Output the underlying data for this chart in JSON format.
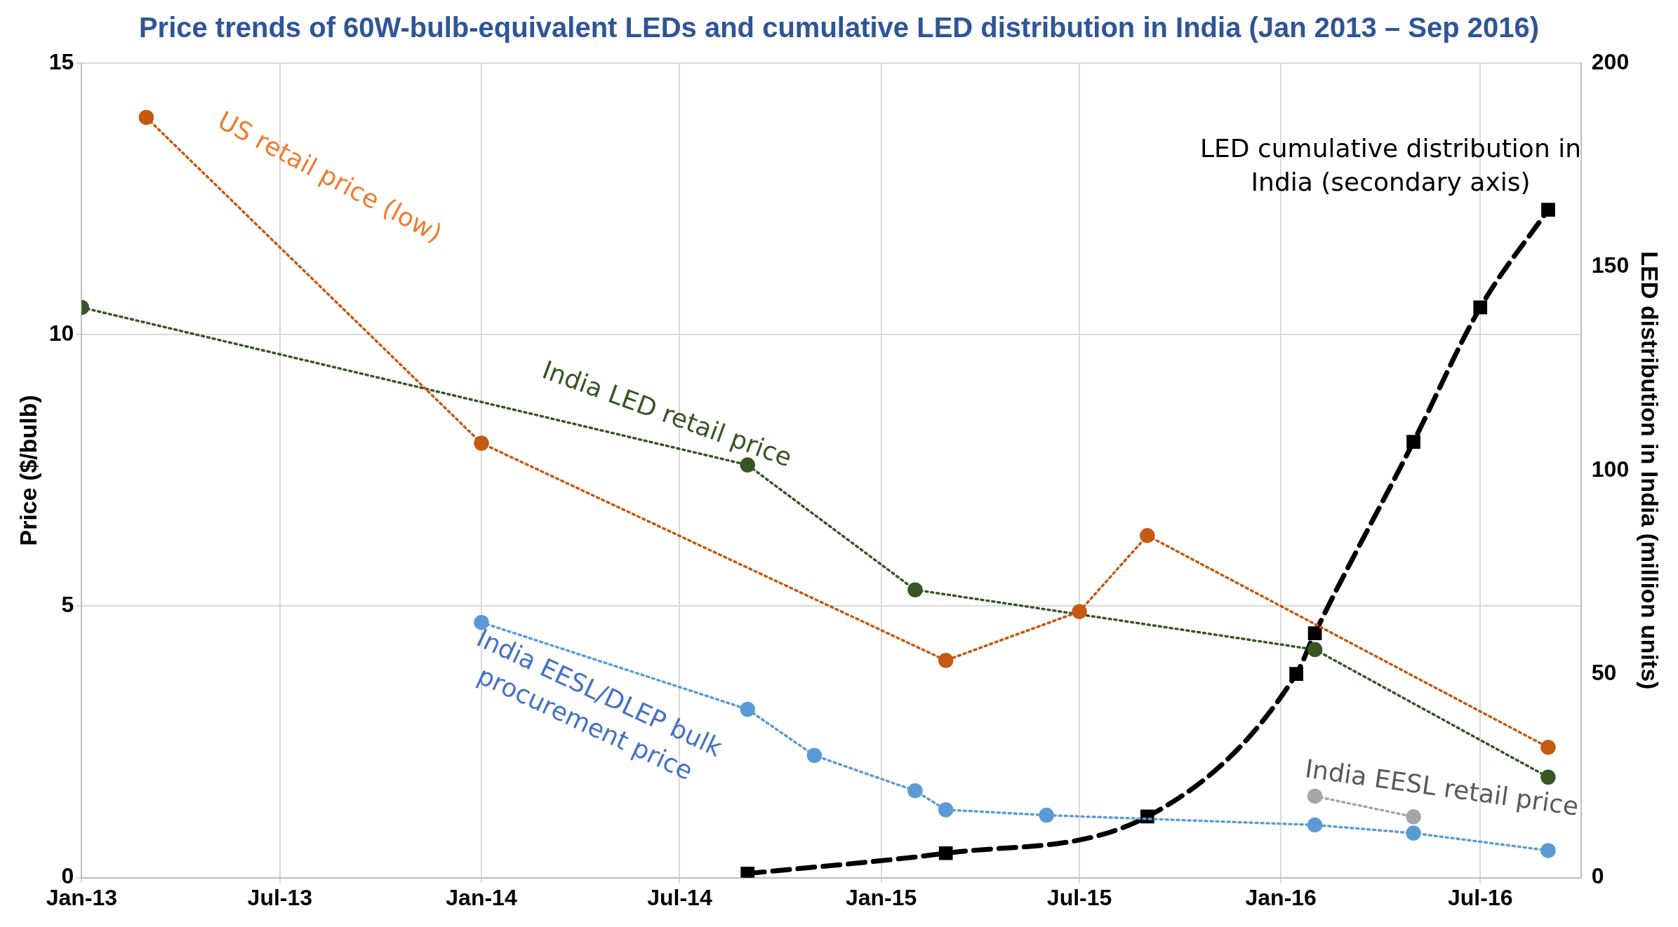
{
  "chart_data": {
    "type": "line",
    "title": "Price trends of 60W-bulb-equivalent LEDs and cumulative LED distribution in India (Jan 2013 – Sep 2016)",
    "ylabel": "Price ($/bulb)",
    "y2label": "LED distribution in India (million units)",
    "xlim": [
      "2013-01",
      "2016-10"
    ],
    "xticks": [
      {
        "value": "2013-01",
        "label": "Jan-13"
      },
      {
        "value": "2013-07",
        "label": "Jul-13"
      },
      {
        "value": "2014-01",
        "label": "Jan-14"
      },
      {
        "value": "2014-07",
        "label": "Jul-14"
      },
      {
        "value": "2015-01",
        "label": "Jan-15"
      },
      {
        "value": "2015-07",
        "label": "Jul-15"
      },
      {
        "value": "2016-01",
        "label": "Jan-16"
      },
      {
        "value": "2016-07",
        "label": "Jul-16"
      }
    ],
    "ylim": [
      0,
      15
    ],
    "yticks": [
      0,
      5,
      10,
      15
    ],
    "y2lim": [
      0,
      200
    ],
    "y2ticks": [
      0,
      50,
      100,
      150,
      200
    ],
    "grid": true,
    "line_style": "dotted",
    "marker": "circle",
    "series": [
      {
        "name": "US retail price (low)",
        "color": "#c55a11",
        "x": [
          "2013-03",
          "2014-01",
          "2015-03",
          "2015-07",
          "2015-09",
          "2016-09"
        ],
        "values": [
          14.0,
          8.0,
          4.0,
          4.9,
          6.3,
          2.4
        ]
      },
      {
        "name": "India LED retail price",
        "color": "#375623",
        "x": [
          "2013-01",
          "2014-09",
          "2015-02",
          "2016-02",
          "2016-09"
        ],
        "values": [
          10.5,
          7.6,
          5.3,
          4.2,
          1.85
        ]
      },
      {
        "name": "India EESL/DLEP bulk procurement price",
        "color": "#5b9bd5",
        "x": [
          "2014-01",
          "2014-09",
          "2014-11",
          "2015-02",
          "2015-03",
          "2015-06",
          "2016-02",
          "2016-05",
          "2016-09"
        ],
        "values": [
          4.7,
          3.1,
          2.25,
          1.6,
          1.25,
          1.15,
          0.97,
          0.82,
          0.5
        ]
      },
      {
        "name": "India EESL retail price",
        "color": "#a6a6a6",
        "x": [
          "2016-02",
          "2016-05"
        ],
        "values": [
          1.5,
          1.12
        ]
      },
      {
        "name": "LED cumulative distribution in India (secondary axis)",
        "color": "#000000",
        "axis": "y2",
        "marker": "square",
        "line_style": "dashed",
        "x": [
          "2014-09",
          "2015-03",
          "2015-09",
          "2016-01-15",
          "2016-02",
          "2016-05",
          "2016-07",
          "2016-09"
        ],
        "values": [
          1,
          6,
          15,
          50,
          60,
          107,
          140,
          164
        ]
      }
    ]
  }
}
